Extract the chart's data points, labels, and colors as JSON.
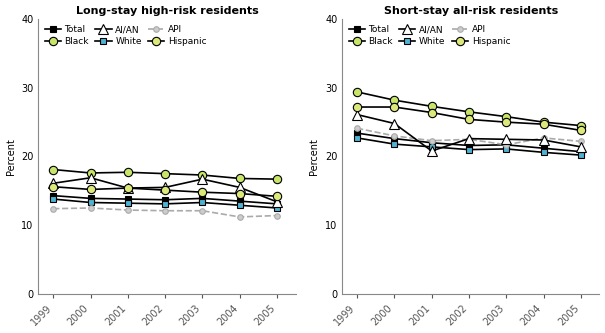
{
  "years": [
    1999,
    2000,
    2001,
    2002,
    2003,
    2004,
    2005
  ],
  "long_stay": {
    "Total": [
      14.3,
      13.9,
      13.8,
      13.7,
      13.9,
      13.5,
      13.1
    ],
    "White": [
      13.8,
      13.3,
      13.2,
      13.1,
      13.3,
      12.9,
      12.5
    ],
    "Black": [
      18.1,
      17.6,
      17.7,
      17.5,
      17.3,
      16.8,
      16.7
    ],
    "API": [
      12.4,
      12.5,
      12.2,
      12.1,
      12.1,
      11.2,
      11.4
    ],
    "AI/AN": [
      16.1,
      16.9,
      15.4,
      15.5,
      16.7,
      15.5,
      13.4
    ],
    "Hispanic": [
      15.6,
      15.2,
      15.4,
      15.1,
      14.8,
      14.6,
      14.2
    ]
  },
  "short_stay": {
    "Total": [
      23.4,
      22.6,
      22.0,
      21.6,
      21.7,
      21.2,
      20.7
    ],
    "White": [
      22.7,
      21.8,
      21.4,
      21.0,
      21.1,
      20.6,
      20.2
    ],
    "Black": [
      29.4,
      28.2,
      27.3,
      26.5,
      25.8,
      25.0,
      24.5
    ],
    "API": [
      24.1,
      23.0,
      22.3,
      22.5,
      21.7,
      22.7,
      22.2
    ],
    "AI/AN": [
      26.1,
      24.8,
      20.8,
      22.6,
      22.5,
      22.4,
      21.4
    ],
    "Hispanic": [
      27.2,
      27.2,
      26.4,
      25.4,
      25.0,
      24.7,
      23.8
    ]
  },
  "title_long": "Long-stay high-risk residents",
  "title_short": "Short-stay all-risk residents",
  "ylabel": "Percent",
  "ylim": [
    0,
    40
  ],
  "yticks": [
    0,
    10,
    20,
    30,
    40
  ],
  "series_styles": {
    "Total": {
      "color": "#000000",
      "marker": "s",
      "linestyle": "-",
      "markercolor": "#000000",
      "markersize": 5,
      "markeredge": "#000000"
    },
    "White": {
      "color": "#000000",
      "marker": "s",
      "linestyle": "-",
      "markercolor": "#4eb3d3",
      "markersize": 5,
      "markeredge": "#000000"
    },
    "Black": {
      "color": "#000000",
      "marker": "o",
      "linestyle": "-",
      "markercolor": "#c7e669",
      "markersize": 6,
      "markeredge": "#000000"
    },
    "API": {
      "color": "#aaaaaa",
      "marker": "o",
      "linestyle": "--",
      "markercolor": "#cccccc",
      "markersize": 4,
      "markeredge": "#aaaaaa"
    },
    "AI/AN": {
      "color": "#000000",
      "marker": "^",
      "linestyle": "-",
      "markercolor": "#ffffff",
      "markersize": 7,
      "markeredge": "#000000"
    },
    "Hispanic": {
      "color": "#000000",
      "marker": "o",
      "linestyle": "-",
      "markercolor": "#dde87a",
      "markersize": 6,
      "markeredge": "#000000"
    }
  },
  "legend_order": [
    "Total",
    "Black",
    "AI/AN",
    "White",
    "API",
    "Hispanic"
  ],
  "background_color": "#ffffff",
  "fig_width": 6.05,
  "fig_height": 3.33,
  "title_fontsize": 8,
  "tick_fontsize": 7,
  "ylabel_fontsize": 7,
  "legend_fontsize": 6.5,
  "linewidth": 1.2
}
